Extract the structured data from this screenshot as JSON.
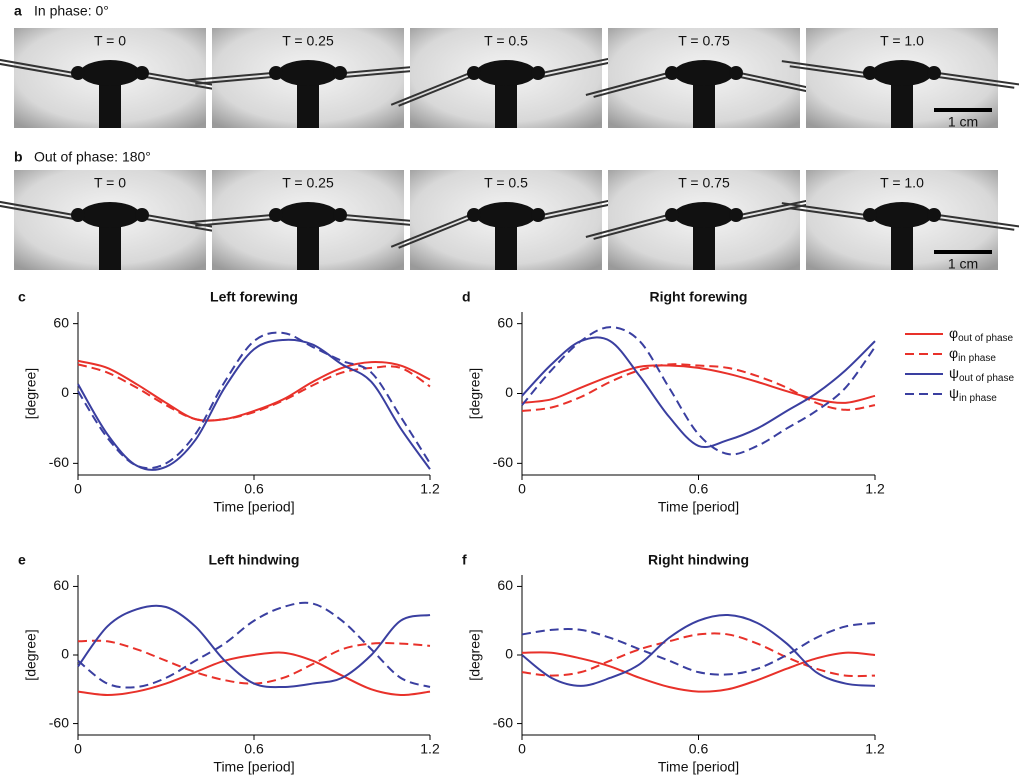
{
  "photo_panels": [
    {
      "label": "a",
      "title": "In phase: 0°",
      "frames": [
        "T = 0",
        "T = 0.25",
        "T = 0.5",
        "T = 0.75",
        "T = 1.0"
      ],
      "scale_bar": "1 cm"
    },
    {
      "label": "b",
      "title": "Out of phase: 180°",
      "frames": [
        "T = 0",
        "T = 0.25",
        "T = 0.5",
        "T = 0.75",
        "T = 1.0"
      ],
      "scale_bar": "1 cm"
    }
  ],
  "chart_data": [
    {
      "type": "line",
      "label": "c",
      "title": "Left forewing",
      "xlabel": "Time [period]",
      "ylabel": "[degree]",
      "x": [
        0,
        0.1,
        0.2,
        0.3,
        0.4,
        0.5,
        0.6,
        0.7,
        0.8,
        0.9,
        1.0,
        1.1,
        1.2
      ],
      "xlim": [
        0,
        1.2
      ],
      "ylim": [
        -70,
        70
      ],
      "xticks": [
        0,
        0.6,
        1.2
      ],
      "yticks": [
        -60,
        0,
        60
      ],
      "series": [
        {
          "color": "#e8312a",
          "dash": false,
          "values": [
            28,
            22,
            8,
            -8,
            -22,
            -22,
            -15,
            -5,
            10,
            22,
            27,
            24,
            12
          ]
        },
        {
          "color": "#e8312a",
          "dash": true,
          "values": [
            25,
            18,
            5,
            -10,
            -22,
            -22,
            -16,
            -6,
            7,
            18,
            22,
            22,
            6
          ]
        },
        {
          "color": "#3a3fa0",
          "dash": false,
          "values": [
            8,
            -35,
            -62,
            -63,
            -40,
            5,
            38,
            46,
            42,
            25,
            10,
            -30,
            -65
          ]
        },
        {
          "color": "#3a3fa0",
          "dash": true,
          "values": [
            2,
            -38,
            -62,
            -60,
            -35,
            10,
            45,
            52,
            40,
            28,
            18,
            -20,
            -60
          ]
        }
      ]
    },
    {
      "type": "line",
      "label": "d",
      "title": "Right forewing",
      "xlabel": "Time [period]",
      "ylabel": "[degree]",
      "x": [
        0,
        0.1,
        0.2,
        0.3,
        0.4,
        0.5,
        0.6,
        0.7,
        0.8,
        0.9,
        1.0,
        1.1,
        1.2
      ],
      "xlim": [
        0,
        1.2
      ],
      "ylim": [
        -70,
        70
      ],
      "xticks": [
        0,
        0.6,
        1.2
      ],
      "yticks": [
        -60,
        0,
        60
      ],
      "legend": "right",
      "series": [
        {
          "name": "φout of phase",
          "color": "#e8312a",
          "dash": false,
          "values": [
            -8,
            -5,
            5,
            15,
            23,
            24,
            22,
            17,
            10,
            2,
            -5,
            -8,
            -2
          ]
        },
        {
          "name": "φin phase",
          "color": "#e8312a",
          "dash": true,
          "values": [
            -15,
            -12,
            -3,
            10,
            20,
            25,
            24,
            22,
            15,
            5,
            -8,
            -14,
            -10
          ]
        },
        {
          "name": "ψout of phase",
          "color": "#3a3fa0",
          "dash": false,
          "values": [
            -2,
            25,
            45,
            45,
            15,
            -20,
            -45,
            -40,
            -30,
            -15,
            0,
            20,
            45
          ]
        },
        {
          "name": "ψin phase",
          "color": "#3a3fa0",
          "dash": true,
          "values": [
            -10,
            20,
            45,
            57,
            45,
            5,
            -35,
            -52,
            -45,
            -30,
            -15,
            5,
            40
          ]
        }
      ]
    },
    {
      "type": "line",
      "label": "e",
      "title": "Left hindwing",
      "xlabel": "Time [period]",
      "ylabel": "[degree]",
      "x": [
        0,
        0.1,
        0.2,
        0.3,
        0.4,
        0.5,
        0.6,
        0.7,
        0.8,
        0.9,
        1.0,
        1.1,
        1.2
      ],
      "xlim": [
        0,
        1.2
      ],
      "ylim": [
        -70,
        70
      ],
      "xticks": [
        0,
        0.6,
        1.2
      ],
      "yticks": [
        -60,
        0,
        60
      ],
      "series": [
        {
          "color": "#e8312a",
          "dash": false,
          "values": [
            -32,
            -35,
            -32,
            -25,
            -15,
            -5,
            0,
            2,
            -5,
            -18,
            -30,
            -35,
            -32
          ]
        },
        {
          "color": "#e8312a",
          "dash": true,
          "values": [
            12,
            12,
            5,
            -5,
            -15,
            -22,
            -25,
            -20,
            -8,
            5,
            10,
            10,
            8
          ]
        },
        {
          "color": "#3a3fa0",
          "dash": false,
          "values": [
            -10,
            25,
            40,
            42,
            25,
            -5,
            -25,
            -28,
            -25,
            -20,
            0,
            30,
            35
          ]
        },
        {
          "color": "#3a3fa0",
          "dash": true,
          "values": [
            -5,
            -25,
            -28,
            -20,
            -5,
            10,
            30,
            42,
            45,
            30,
            5,
            -20,
            -28
          ]
        }
      ]
    },
    {
      "type": "line",
      "label": "f",
      "title": "Right hindwing",
      "xlabel": "Time [period]",
      "ylabel": "[degree]",
      "x": [
        0,
        0.1,
        0.2,
        0.3,
        0.4,
        0.5,
        0.6,
        0.7,
        0.8,
        0.9,
        1.0,
        1.1,
        1.2
      ],
      "xlim": [
        0,
        1.2
      ],
      "ylim": [
        -70,
        70
      ],
      "xticks": [
        0,
        0.6,
        1.2
      ],
      "yticks": [
        -60,
        0,
        60
      ],
      "series": [
        {
          "color": "#e8312a",
          "dash": false,
          "values": [
            2,
            2,
            -3,
            -10,
            -20,
            -28,
            -32,
            -30,
            -22,
            -12,
            -3,
            2,
            0
          ]
        },
        {
          "color": "#e8312a",
          "dash": true,
          "values": [
            -15,
            -18,
            -15,
            -5,
            5,
            12,
            18,
            18,
            10,
            -2,
            -12,
            -18,
            -18
          ]
        },
        {
          "color": "#3a3fa0",
          "dash": false,
          "values": [
            0,
            -20,
            -27,
            -20,
            -8,
            15,
            30,
            35,
            28,
            10,
            -15,
            -25,
            -27
          ]
        },
        {
          "color": "#3a3fa0",
          "dash": true,
          "values": [
            18,
            22,
            22,
            15,
            5,
            -5,
            -15,
            -17,
            -12,
            0,
            15,
            25,
            28
          ]
        }
      ]
    }
  ]
}
